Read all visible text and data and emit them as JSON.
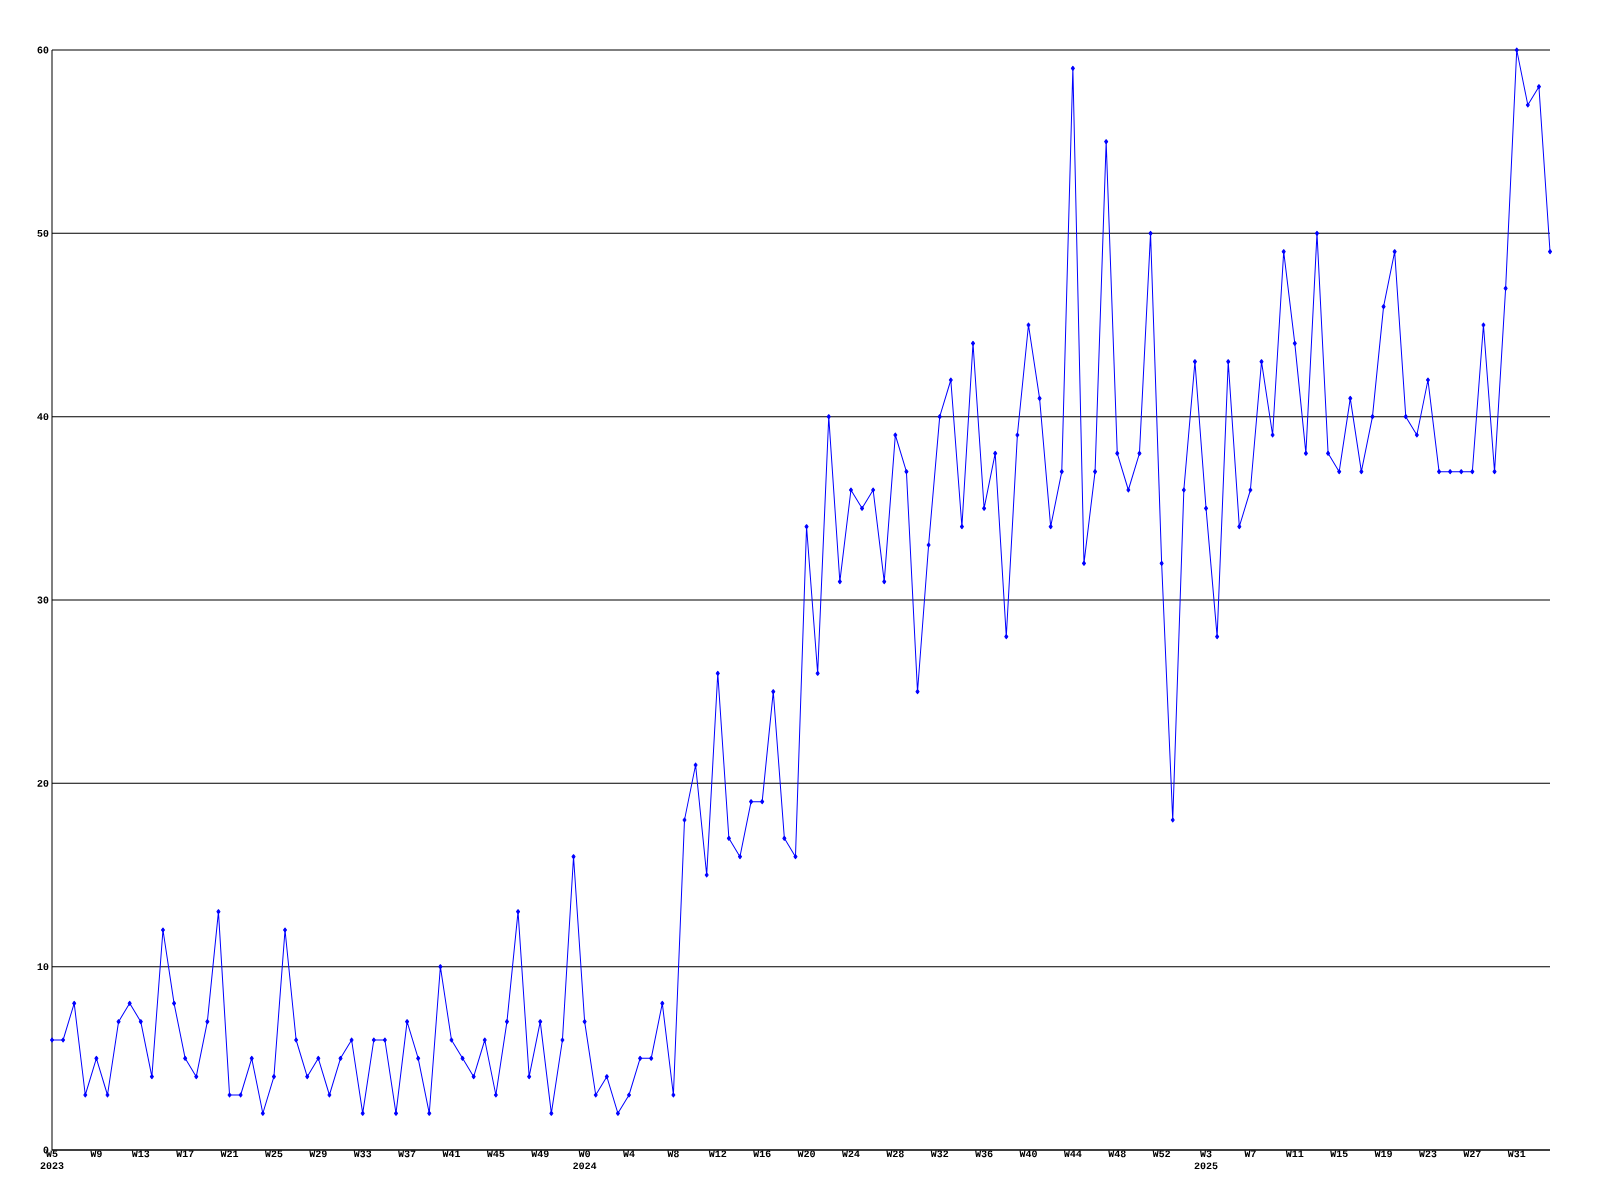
{
  "chart_data": {
    "type": "line",
    "categories": [
      "W5 2023",
      null,
      null,
      null,
      "W9",
      null,
      null,
      null,
      "W13",
      null,
      null,
      null,
      "W17",
      null,
      null,
      null,
      "W21",
      null,
      null,
      null,
      "W25",
      null,
      null,
      null,
      "W29",
      null,
      null,
      null,
      "W33",
      null,
      null,
      null,
      "W37",
      null,
      null,
      null,
      "W41",
      null,
      null,
      null,
      "W45",
      null,
      null,
      null,
      "W49",
      null,
      null,
      null,
      "W0 2024",
      null,
      null,
      null,
      "W4",
      null,
      null,
      null,
      "W8",
      null,
      null,
      null,
      "W12",
      null,
      null,
      null,
      "W16",
      null,
      null,
      null,
      "W20",
      null,
      null,
      null,
      "W24",
      null,
      null,
      null,
      "W28",
      null,
      null,
      null,
      "W32",
      null,
      null,
      null,
      "W36",
      null,
      null,
      null,
      "W40",
      null,
      null,
      null,
      "W44",
      null,
      null,
      null,
      "W48",
      null,
      null,
      null,
      "W52",
      null,
      null,
      null,
      "W3 2025",
      null,
      null,
      null,
      "W7",
      null,
      null,
      null,
      "W11",
      null,
      null,
      null,
      "W15",
      null,
      null,
      null,
      "W19",
      null,
      null,
      null,
      "W23",
      null,
      null,
      null,
      "W27",
      null,
      null,
      null,
      "W31",
      null,
      null,
      null
    ],
    "values": [
      6,
      6,
      8,
      3,
      5,
      3,
      7,
      8,
      7,
      4,
      12,
      8,
      5,
      4,
      7,
      13,
      3,
      3,
      5,
      2,
      4,
      12,
      6,
      4,
      5,
      3,
      5,
      6,
      2,
      6,
      6,
      2,
      7,
      5,
      2,
      10,
      6,
      5,
      4,
      6,
      3,
      7,
      13,
      4,
      7,
      2,
      6,
      16,
      7,
      3,
      4,
      2,
      3,
      5,
      5,
      8,
      3,
      18,
      21,
      15,
      26,
      17,
      16,
      19,
      19,
      25,
      17,
      16,
      34,
      26,
      40,
      31,
      36,
      35,
      36,
      31,
      39,
      37,
      25,
      33,
      40,
      42,
      34,
      44,
      35,
      38,
      28,
      39,
      45,
      41,
      34,
      37,
      59,
      32,
      37,
      55,
      38,
      36,
      38,
      50,
      32,
      18,
      36,
      43,
      35,
      28,
      43,
      34,
      36,
      43,
      39,
      49,
      44,
      38,
      50,
      38,
      37,
      41,
      37,
      40,
      46,
      49,
      40,
      39,
      42,
      37,
      37,
      37,
      37,
      45,
      37,
      47,
      60,
      57,
      58,
      49
    ],
    "color": "#0000ff",
    "marker": "diamond",
    "line_style": "solid",
    "ylim": [
      0,
      60
    ],
    "yticks": [
      0,
      10,
      20,
      30,
      40,
      50,
      60
    ],
    "grid": "y"
  }
}
